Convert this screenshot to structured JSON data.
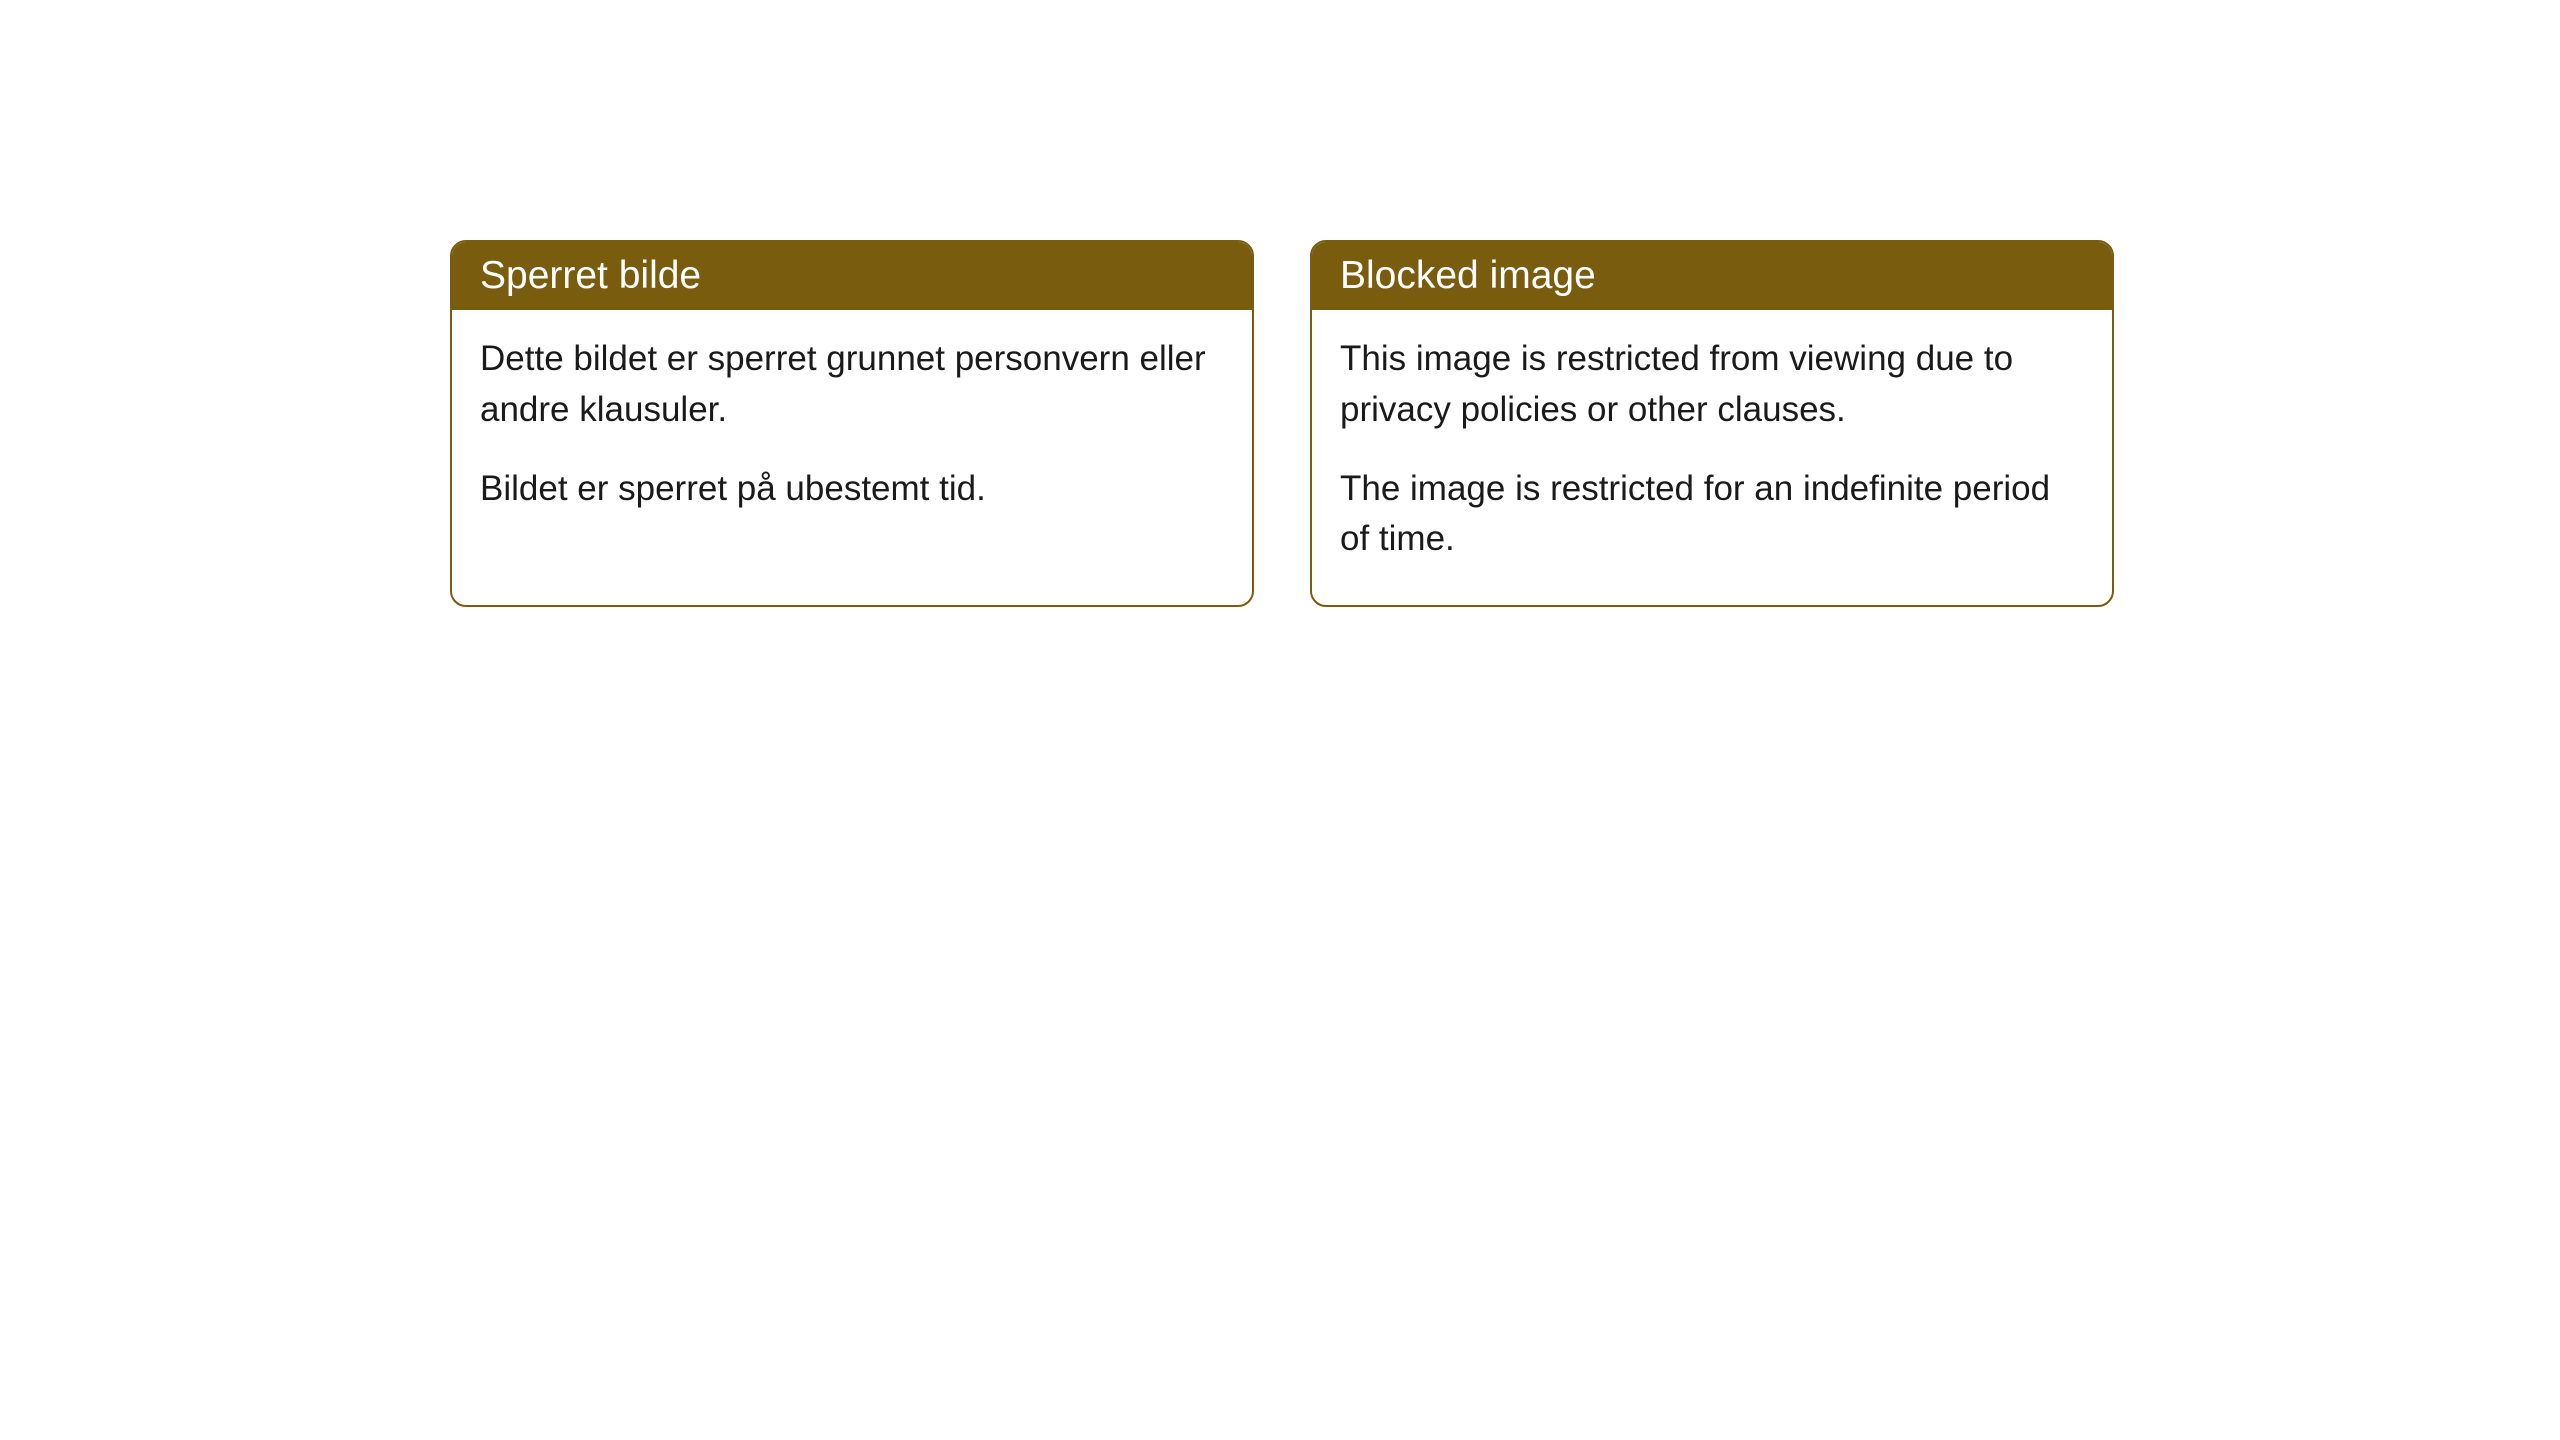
{
  "cards": [
    {
      "title": "Sperret bilde",
      "paragraph1": "Dette bildet er sperret grunnet personvern eller andre klausuler.",
      "paragraph2": "Bildet er sperret på ubestemt tid."
    },
    {
      "title": "Blocked image",
      "paragraph1": "This image is restricted from viewing due to privacy policies or other clauses.",
      "paragraph2": "The image is restricted for an indefinite period of time."
    }
  ],
  "style": {
    "header_background_color": "#7a5c0f",
    "header_text_color": "#ffffff",
    "border_color": "#7a5c0f",
    "body_text_color": "#1a1a1a",
    "body_background_color": "#ffffff",
    "border_radius": 16,
    "header_fontsize": 39,
    "body_fontsize": 35
  }
}
